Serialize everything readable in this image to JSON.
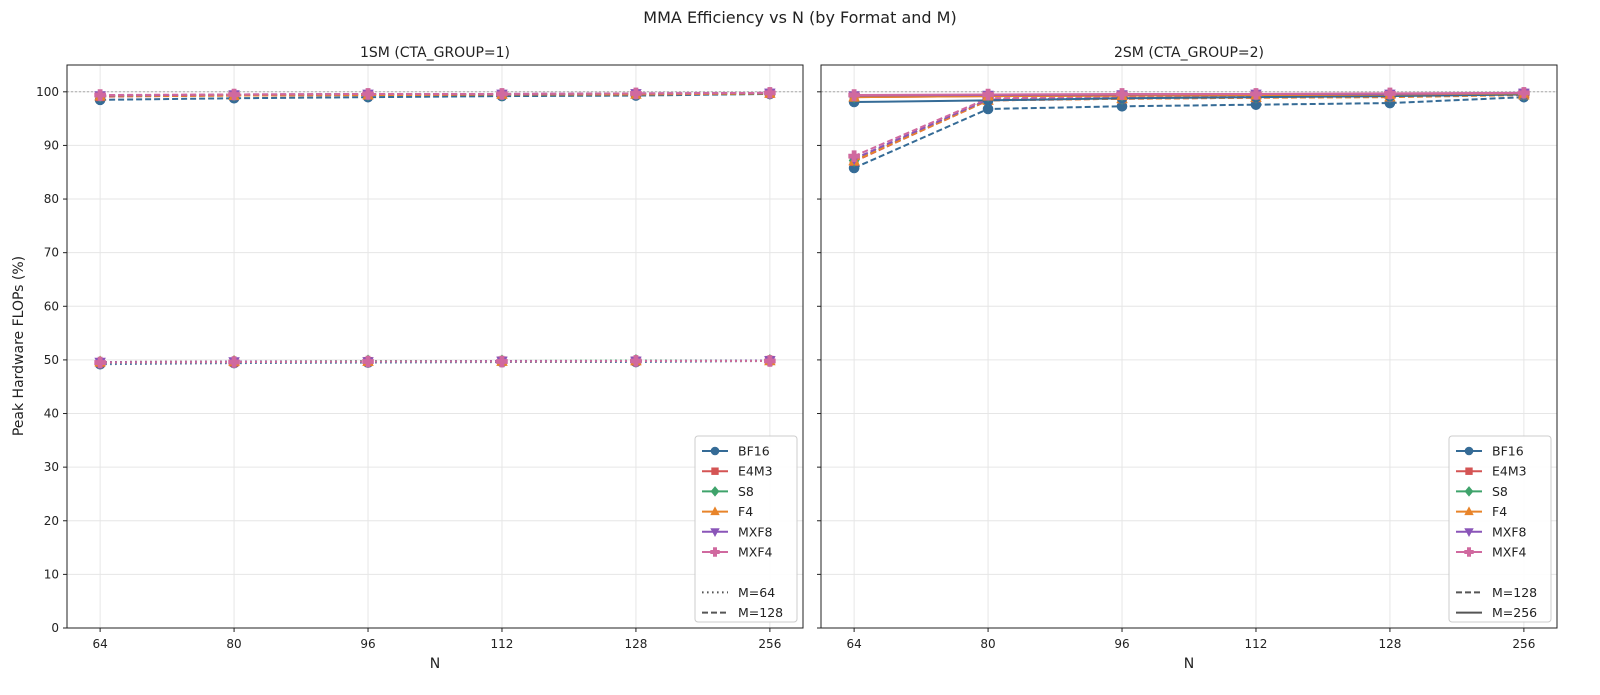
{
  "chart_data": {
    "type": "line",
    "title": "MMA Efficiency vs N (by Format and M)",
    "ylabel": "Peak Hardware FLOPs (%)",
    "xlabel": "N",
    "x_categories": [
      "64",
      "80",
      "96",
      "112",
      "128",
      "256"
    ],
    "yticks": [
      "0",
      "10",
      "20",
      "30",
      "40",
      "50",
      "60",
      "70",
      "80",
      "90",
      "100"
    ],
    "ylim": [
      0,
      105
    ],
    "reference_line": 100,
    "formats": [
      {
        "name": "BF16",
        "color": "#356b96",
        "marker": "circle"
      },
      {
        "name": "E4M3",
        "color": "#d45454",
        "marker": "square"
      },
      {
        "name": "S8",
        "color": "#3fa36b",
        "marker": "diamond"
      },
      {
        "name": "F4",
        "color": "#e8842a",
        "marker": "triangle-up"
      },
      {
        "name": "MXF8",
        "color": "#8a55b8",
        "marker": "triangle-down"
      },
      {
        "name": "MXF4",
        "color": "#d0699f",
        "marker": "plus-filled"
      }
    ],
    "panels": [
      {
        "title": "1SM (CTA_GROUP=1)",
        "show_ylabel": true,
        "legend_m": [
          {
            "label": "M=64",
            "dash": "dotted"
          },
          {
            "label": "M=128",
            "dash": "dashed"
          }
        ],
        "series": [
          {
            "format": "BF16",
            "m": "64",
            "dash": "dotted",
            "values": [
              49.2,
              49.4,
              49.5,
              49.6,
              49.6,
              49.8
            ]
          },
          {
            "format": "E4M3",
            "m": "64",
            "dash": "dotted",
            "values": [
              49.5,
              49.6,
              49.7,
              49.8,
              49.8,
              49.9
            ]
          },
          {
            "format": "S8",
            "m": "64",
            "dash": "dotted",
            "values": [
              49.6,
              49.7,
              49.8,
              49.8,
              49.9,
              49.9
            ]
          },
          {
            "format": "F4",
            "m": "64",
            "dash": "dotted",
            "values": [
              49.6,
              49.7,
              49.7,
              49.7,
              49.8,
              49.8
            ]
          },
          {
            "format": "MXF8",
            "m": "64",
            "dash": "dotted",
            "values": [
              49.6,
              49.7,
              49.7,
              49.8,
              49.8,
              49.9
            ]
          },
          {
            "format": "MXF4",
            "m": "64",
            "dash": "dotted",
            "values": [
              49.5,
              49.6,
              49.7,
              49.7,
              49.8,
              49.8
            ]
          },
          {
            "format": "BF16",
            "m": "128",
            "dash": "dashed",
            "values": [
              98.5,
              98.8,
              99.0,
              99.2,
              99.3,
              99.6
            ]
          },
          {
            "format": "E4M3",
            "m": "128",
            "dash": "dashed",
            "values": [
              99.1,
              99.3,
              99.4,
              99.5,
              99.6,
              99.7
            ]
          },
          {
            "format": "S8",
            "m": "128",
            "dash": "dashed",
            "values": [
              99.2,
              99.4,
              99.5,
              99.5,
              99.6,
              99.7
            ]
          },
          {
            "format": "F4",
            "m": "128",
            "dash": "dashed",
            "values": [
              99.2,
              99.3,
              99.4,
              99.5,
              99.5,
              99.7
            ]
          },
          {
            "format": "MXF8",
            "m": "128",
            "dash": "dashed",
            "values": [
              99.3,
              99.5,
              99.6,
              99.6,
              99.7,
              99.8
            ]
          },
          {
            "format": "MXF4",
            "m": "128",
            "dash": "dashed",
            "values": [
              99.4,
              99.5,
              99.6,
              99.6,
              99.7,
              99.8
            ]
          }
        ]
      },
      {
        "title": "2SM (CTA_GROUP=2)",
        "show_ylabel": false,
        "legend_m": [
          {
            "label": "M=128",
            "dash": "dashed"
          },
          {
            "label": "M=256",
            "dash": "solid"
          }
        ],
        "series": [
          {
            "format": "BF16",
            "m": "128",
            "dash": "dashed",
            "values": [
              85.8,
              96.8,
              97.3,
              97.6,
              97.9,
              99.0
            ]
          },
          {
            "format": "E4M3",
            "m": "128",
            "dash": "dashed",
            "values": [
              87.0,
              98.4,
              98.7,
              98.9,
              99.1,
              99.5
            ]
          },
          {
            "format": "S8",
            "m": "128",
            "dash": "dashed",
            "values": [
              87.2,
              98.5,
              98.8,
              99.0,
              99.1,
              99.5
            ]
          },
          {
            "format": "F4",
            "m": "128",
            "dash": "dashed",
            "values": [
              87.1,
              98.4,
              98.7,
              98.9,
              99.0,
              99.4
            ]
          },
          {
            "format": "MXF8",
            "m": "128",
            "dash": "dashed",
            "values": [
              87.5,
              98.6,
              98.9,
              99.1,
              99.2,
              99.6
            ]
          },
          {
            "format": "MXF4",
            "m": "128",
            "dash": "dashed",
            "values": [
              88.0,
              98.8,
              99.0,
              99.2,
              99.3,
              99.6
            ]
          },
          {
            "format": "BF16",
            "m": "256",
            "dash": "solid",
            "values": [
              98.1,
              98.4,
              98.8,
              99.0,
              99.2,
              99.5
            ]
          },
          {
            "format": "E4M3",
            "m": "256",
            "dash": "solid",
            "values": [
              99.0,
              99.2,
              99.3,
              99.4,
              99.5,
              99.7
            ]
          },
          {
            "format": "S8",
            "m": "256",
            "dash": "solid",
            "values": [
              99.1,
              99.3,
              99.4,
              99.5,
              99.5,
              99.7
            ]
          },
          {
            "format": "F4",
            "m": "256",
            "dash": "solid",
            "values": [
              99.0,
              99.2,
              99.3,
              99.4,
              99.5,
              99.7
            ]
          },
          {
            "format": "MXF8",
            "m": "256",
            "dash": "solid",
            "values": [
              99.3,
              99.4,
              99.5,
              99.6,
              99.6,
              99.8
            ]
          },
          {
            "format": "MXF4",
            "m": "256",
            "dash": "solid",
            "values": [
              99.4,
              99.5,
              99.6,
              99.6,
              99.7,
              99.8
            ]
          }
        ]
      }
    ]
  }
}
